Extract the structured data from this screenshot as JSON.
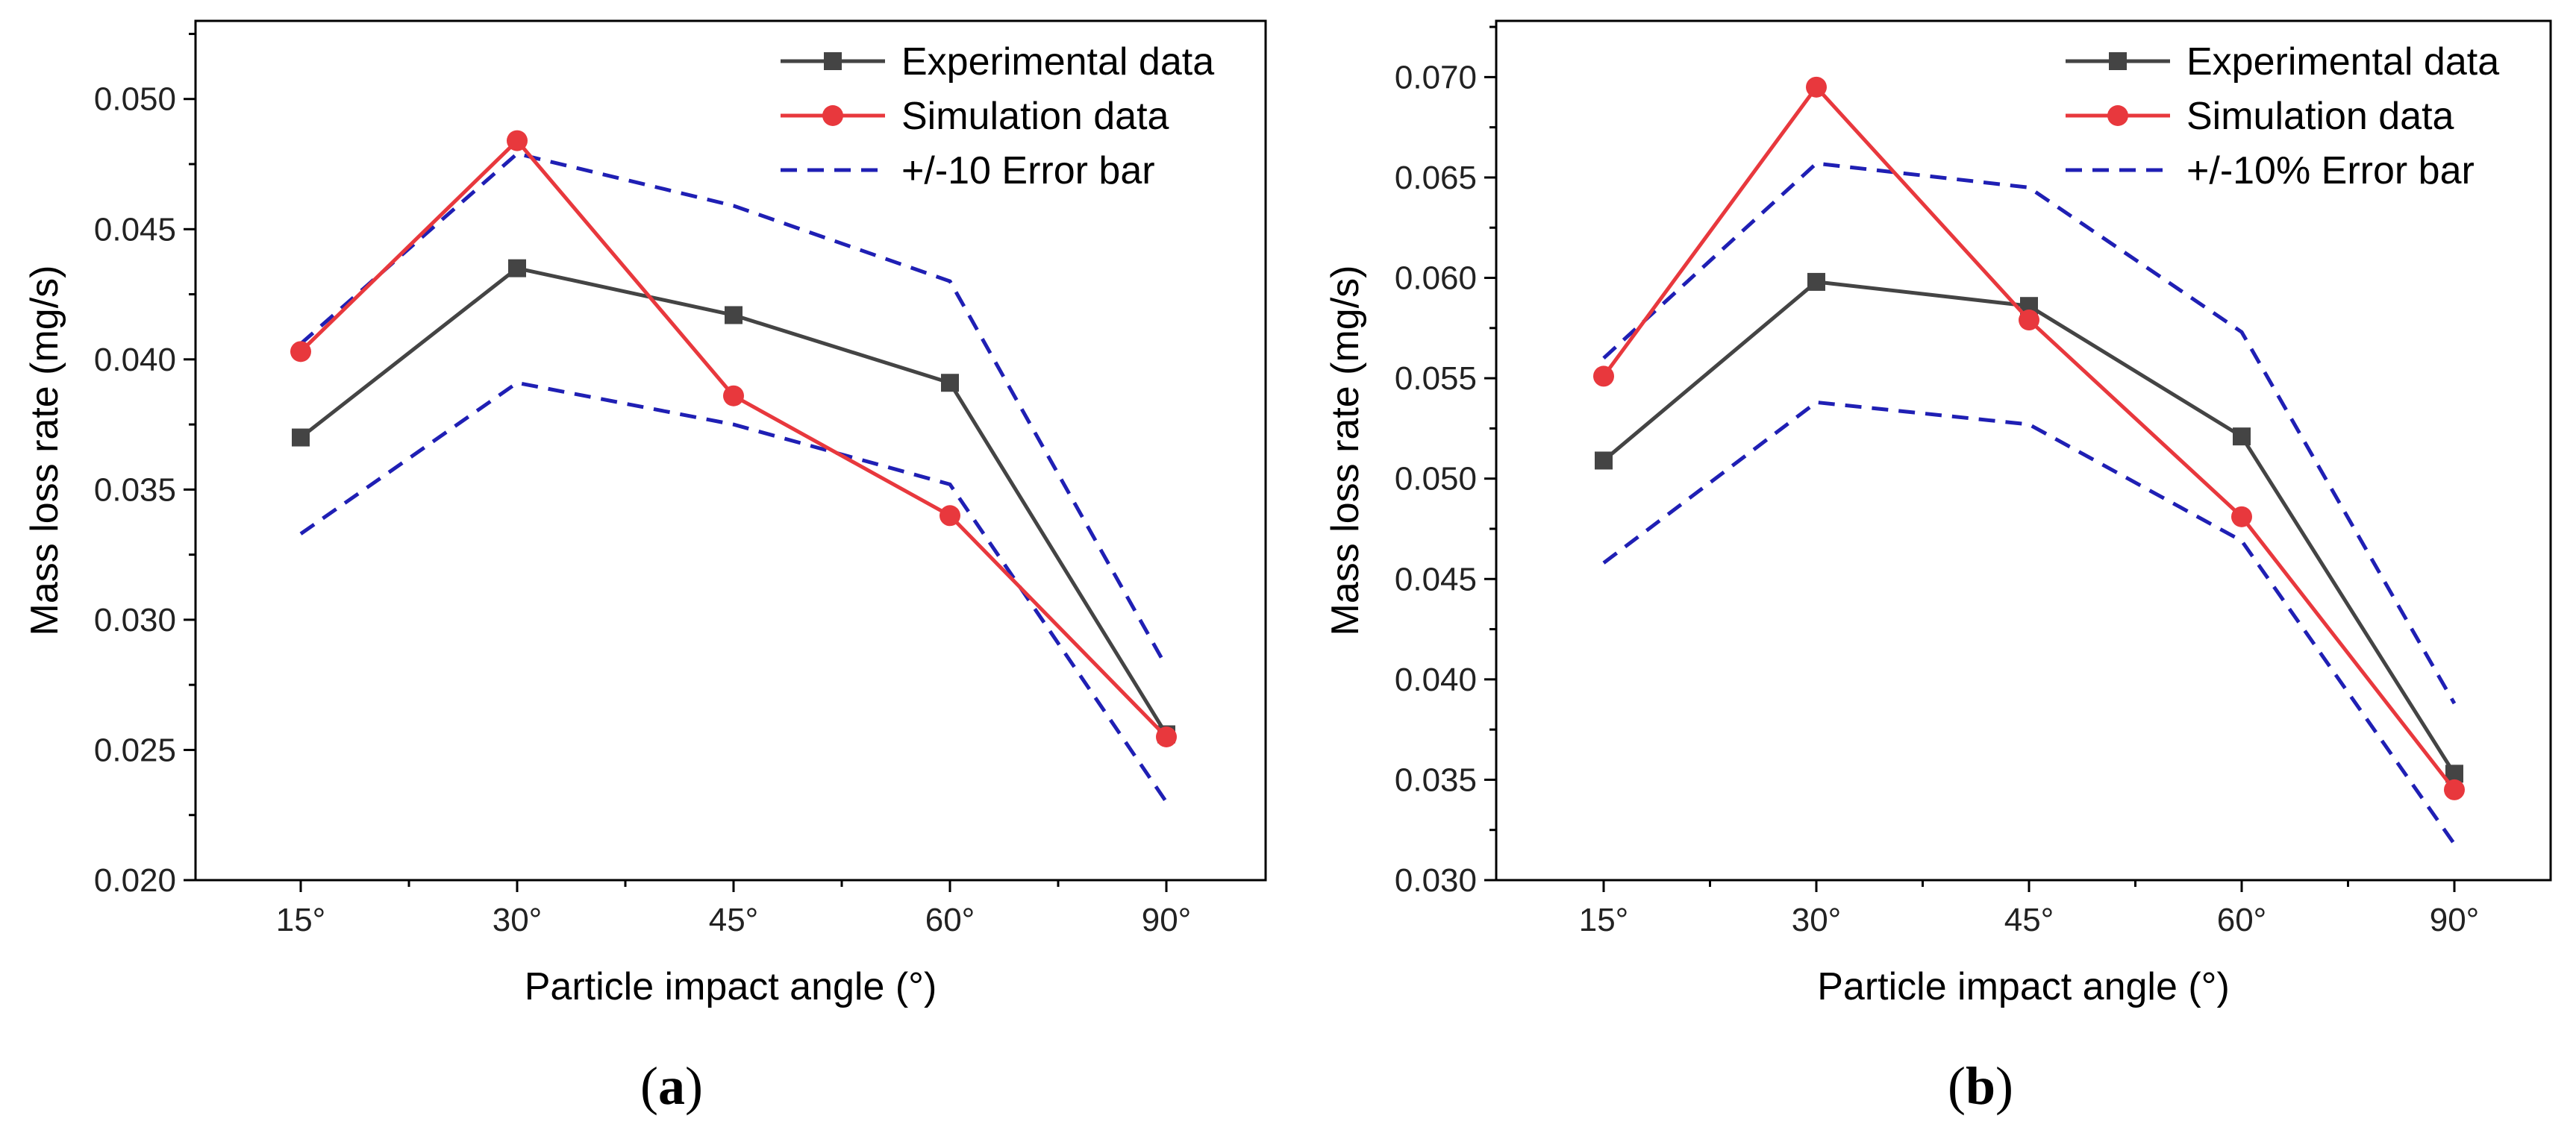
{
  "chart_data": [
    {
      "type": "line",
      "panel_label": "a",
      "xlabel": "Particle impact angle (°)",
      "ylabel": "Mass loss rate (mg/s)",
      "categories": [
        "15°",
        "30°",
        "45°",
        "60°",
        "90°"
      ],
      "ylim": [
        0.02,
        0.053
      ],
      "yticks": [
        "0.020",
        "0.025",
        "0.030",
        "0.035",
        "0.040",
        "0.045",
        "0.050"
      ],
      "legend_position": "top-right",
      "series": [
        {
          "name": "Experimental data",
          "style": "line-square",
          "color": "#444444",
          "values": [
            0.037,
            0.0435,
            0.0417,
            0.0391,
            0.0256
          ]
        },
        {
          "name": "Simulation data",
          "style": "line-circle",
          "color": "#e8383d",
          "values": [
            0.0403,
            0.0484,
            0.0386,
            0.034,
            0.0255
          ]
        },
        {
          "name": "+/-10 Error bar",
          "style": "dashed",
          "color": "#1f1fb4",
          "upper": [
            0.0406,
            0.0479,
            0.0459,
            0.043,
            0.0282
          ],
          "lower": [
            0.0333,
            0.0391,
            0.0375,
            0.0352,
            0.023
          ]
        }
      ]
    },
    {
      "type": "line",
      "panel_label": "b",
      "xlabel": "Particle impact angle (°)",
      "ylabel": "Mass loss rate (mg/s)",
      "categories": [
        "15°",
        "30°",
        "45°",
        "60°",
        "90°"
      ],
      "ylim": [
        0.03,
        0.0728
      ],
      "yticks": [
        "0.030",
        "0.035",
        "0.040",
        "0.045",
        "0.050",
        "0.055",
        "0.060",
        "0.065",
        "0.070"
      ],
      "legend_position": "top-right",
      "series": [
        {
          "name": "Experimental data",
          "style": "line-square",
          "color": "#444444",
          "values": [
            0.0509,
            0.0598,
            0.0586,
            0.0521,
            0.0353
          ]
        },
        {
          "name": "Simulation data",
          "style": "line-circle",
          "color": "#e8383d",
          "values": [
            0.0551,
            0.0695,
            0.0579,
            0.0481,
            0.0345
          ]
        },
        {
          "name": "+/-10% Error bar",
          "style": "dashed",
          "color": "#1f1fb4",
          "upper": [
            0.056,
            0.0657,
            0.0645,
            0.0573,
            0.0388
          ],
          "lower": [
            0.0458,
            0.0538,
            0.0527,
            0.0469,
            0.0318
          ]
        }
      ]
    }
  ]
}
